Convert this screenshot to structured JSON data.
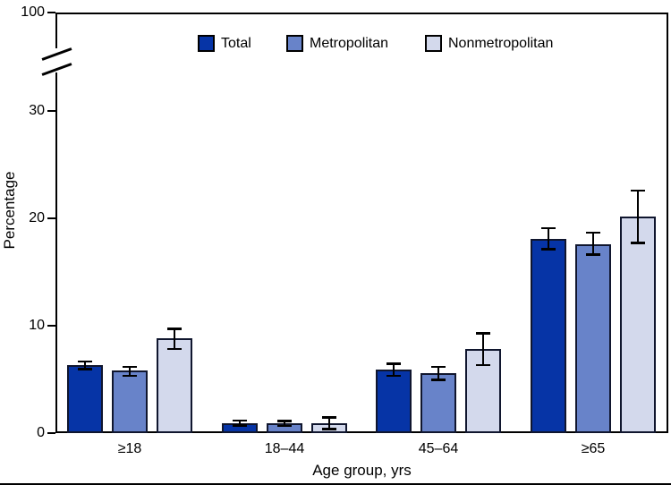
{
  "chart_data": {
    "type": "bar",
    "title": "",
    "xlabel": "Age group, yrs",
    "ylabel": "Percentage",
    "categories": [
      "≥18",
      "18–44",
      "45–64",
      "≥65"
    ],
    "y_axis": {
      "ticks": [
        0,
        10,
        20,
        30,
        100
      ],
      "break_between": [
        35,
        100
      ],
      "units": "percent"
    },
    "series": [
      {
        "name": "Total",
        "color": "#0634a6",
        "values": [
          6.3,
          0.9,
          5.9,
          18.1
        ],
        "error_low": [
          0.35,
          0.2,
          0.6,
          1.0
        ],
        "error_high": [
          0.4,
          0.3,
          0.6,
          1.0
        ]
      },
      {
        "name": "Metropolitan",
        "color": "#6883c9",
        "values": [
          5.8,
          0.9,
          5.6,
          17.6
        ],
        "error_low": [
          0.5,
          0.25,
          0.65,
          1.0
        ],
        "error_high": [
          0.4,
          0.25,
          0.6,
          1.1
        ]
      },
      {
        "name": "Nonmetropolitan",
        "color": "#d3d9ec",
        "values": [
          8.8,
          0.9,
          7.8,
          20.2
        ],
        "error_low": [
          1.0,
          0.55,
          1.5,
          2.5
        ],
        "error_high": [
          0.95,
          0.6,
          1.5,
          2.4
        ]
      }
    ],
    "bar_border_color": "#10162e",
    "error_bar_color": "#000000",
    "legend": {
      "position": "top-inside",
      "entries": [
        "Total",
        "Metropolitan",
        "Nonmetropolitan"
      ]
    }
  }
}
